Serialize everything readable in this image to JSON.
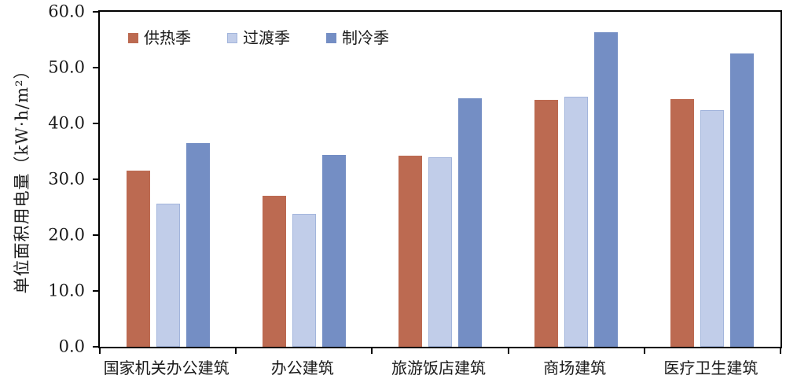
{
  "chart_data": {
    "type": "bar",
    "title": "",
    "xlabel": "",
    "ylabel": "单位面积用电量（kW·h/m²）",
    "ylim": [
      0,
      60
    ],
    "ytick_step": 10,
    "ytick_labels": [
      "0.0",
      "10.0",
      "20.0",
      "30.0",
      "40.0",
      "50.0",
      "60.0"
    ],
    "grid": false,
    "legend_position": "top-left-inside",
    "categories": [
      "国家机关办公建筑",
      "办公建筑",
      "旅游饭店建筑",
      "商场建筑",
      "医疗卫生建筑"
    ],
    "series": [
      {
        "name": "供热季",
        "color": "#BC6A51",
        "border": "#BC6A51",
        "values": [
          31.5,
          27.1,
          34.2,
          44.2,
          44.4
        ]
      },
      {
        "name": "过渡季",
        "color": "#C1CDE9",
        "border": "#A3B5DC",
        "values": [
          25.6,
          23.8,
          34.0,
          44.8,
          42.4
        ]
      },
      {
        "name": "制冷季",
        "color": "#748EC4",
        "border": "#748EC4",
        "values": [
          36.5,
          34.3,
          44.5,
          56.4,
          52.5
        ]
      }
    ]
  },
  "colors": {
    "axis": "#000000",
    "background": "#FFFFFF",
    "text": "#1a1a1a"
  }
}
